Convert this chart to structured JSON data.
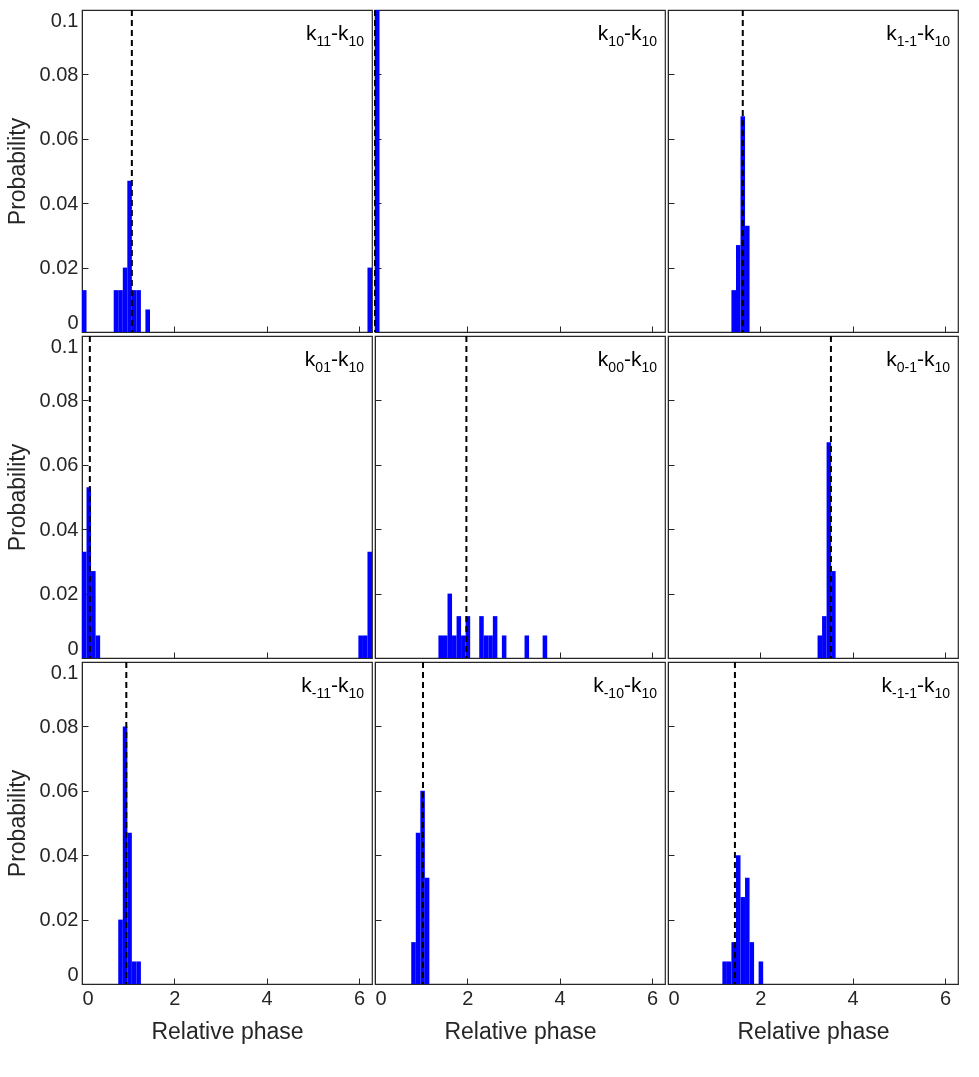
{
  "chart_data": [
    {
      "type": "histogram",
      "ylabel": "Probability",
      "annotations": [
        "k$_{11}$-k$_{10}$"
      ],
      "color": "#0000ff",
      "tick_labels": "y",
      "xlim": [
        0,
        6.283
      ],
      "xticks": [
        0,
        2,
        4,
        6
      ],
      "ylim": [
        0,
        0.1
      ],
      "yticks": [
        0,
        0.02,
        0.04,
        0.06,
        0.08,
        0.1
      ],
      "bins": [
        0,
        0.098,
        0.196,
        0.295,
        0.393,
        0.491,
        0.589,
        0.687,
        0.785,
        0.884,
        0.982,
        1.08,
        1.178,
        1.276,
        1.374,
        1.473,
        1.571,
        1.669,
        1.767,
        1.865,
        1.963,
        2.062,
        2.16,
        2.258,
        2.356,
        2.454,
        2.553,
        2.651,
        2.749,
        2.847,
        2.945,
        3.043,
        3.142,
        3.24,
        3.338,
        3.436,
        3.534,
        3.632,
        3.731,
        3.829,
        3.927,
        4.025,
        4.123,
        4.221,
        4.32,
        4.418,
        4.516,
        4.614,
        4.712,
        4.81,
        4.909,
        5.007,
        5.105,
        5.203,
        5.301,
        5.399,
        5.498,
        5.596,
        5.694,
        5.792,
        5.89,
        5.988,
        6.087,
        6.185,
        6.283
      ],
      "values": [
        0.013,
        0,
        0,
        0,
        0,
        0,
        0,
        0.013,
        0.013,
        0.02,
        0.047,
        0.013,
        0.013,
        0,
        0.007,
        0,
        0,
        0,
        0,
        0,
        0,
        0,
        0,
        0,
        0,
        0,
        0,
        0,
        0,
        0,
        0,
        0,
        0,
        0,
        0,
        0,
        0,
        0,
        0,
        0,
        0,
        0,
        0,
        0,
        0,
        0,
        0,
        0,
        0,
        0,
        0,
        0,
        0,
        0,
        0,
        0,
        0,
        0,
        0,
        0,
        0,
        0,
        0,
        0.02
      ],
      "ref_lines": [
        {
          "axis": "x",
          "value": 1.08,
          "line_style": "dashed",
          "color": "#000000"
        }
      ]
    },
    {
      "type": "histogram",
      "annotations": [
        "k$_{10}$-k$_{10}$"
      ],
      "color": "#0000ff",
      "tick_labels": false,
      "xlim": [
        0,
        6.283
      ],
      "xticks": [
        0,
        2,
        4,
        6
      ],
      "ylim": [
        0,
        0.1
      ],
      "yticks": [
        0,
        0.02,
        0.04,
        0.06,
        0.08,
        0.1
      ],
      "bins": [
        0,
        0.098,
        0.196,
        0.295,
        0.393,
        0.491,
        0.589,
        0.687,
        0.785,
        0.884,
        0.982,
        1.08,
        1.178,
        1.276,
        1.374,
        1.473,
        1.571,
        1.669,
        1.767,
        1.865,
        1.963,
        2.062,
        2.16,
        2.258,
        2.356,
        2.454,
        2.553,
        2.651,
        2.749,
        2.847,
        2.945,
        3.043,
        3.142,
        3.24,
        3.338,
        3.436,
        3.534,
        3.632,
        3.731,
        3.829,
        3.927,
        4.025,
        4.123,
        4.221,
        4.32,
        4.418,
        4.516,
        4.614,
        4.712,
        4.81,
        4.909,
        5.007,
        5.105,
        5.203,
        5.301,
        5.399,
        5.498,
        5.596,
        5.694,
        5.792,
        5.89,
        5.988,
        6.087,
        6.185,
        6.283
      ],
      "values": [
        0.1,
        0,
        0,
        0,
        0,
        0,
        0,
        0,
        0,
        0,
        0,
        0,
        0,
        0,
        0,
        0,
        0,
        0,
        0,
        0,
        0,
        0,
        0,
        0,
        0,
        0,
        0,
        0,
        0,
        0,
        0,
        0,
        0,
        0,
        0,
        0,
        0,
        0,
        0,
        0,
        0,
        0,
        0,
        0,
        0,
        0,
        0,
        0,
        0,
        0,
        0,
        0,
        0,
        0,
        0,
        0,
        0,
        0,
        0,
        0,
        0,
        0,
        0,
        0
      ],
      "ref_lines": [
        {
          "axis": "x",
          "value": 0,
          "line_style": "dashed",
          "color": "#000000"
        }
      ]
    },
    {
      "type": "histogram",
      "annotations": [
        "k$_{1-1}$-k$_{10}$"
      ],
      "color": "#0000ff",
      "tick_labels": false,
      "xlim": [
        0,
        6.283
      ],
      "xticks": [
        0,
        2,
        4,
        6
      ],
      "ylim": [
        0,
        0.1
      ],
      "yticks": [
        0,
        0.02,
        0.04,
        0.06,
        0.08,
        0.1
      ],
      "bins": [
        0,
        0.098,
        0.196,
        0.295,
        0.393,
        0.491,
        0.589,
        0.687,
        0.785,
        0.884,
        0.982,
        1.08,
        1.178,
        1.276,
        1.374,
        1.473,
        1.571,
        1.669,
        1.767,
        1.865,
        1.963,
        2.062,
        2.16,
        2.258,
        2.356,
        2.454,
        2.553,
        2.651,
        2.749,
        2.847,
        2.945,
        3.043,
        3.142,
        3.24,
        3.338,
        3.436,
        3.534,
        3.632,
        3.731,
        3.829,
        3.927,
        4.025,
        4.123,
        4.221,
        4.32,
        4.418,
        4.516,
        4.614,
        4.712,
        4.81,
        4.909,
        5.007,
        5.105,
        5.203,
        5.301,
        5.399,
        5.498,
        5.596,
        5.694,
        5.792,
        5.89,
        5.988,
        6.087,
        6.185,
        6.283
      ],
      "values": [
        0,
        0,
        0,
        0,
        0,
        0,
        0,
        0,
        0,
        0,
        0,
        0,
        0,
        0,
        0.013,
        0.027,
        0.067,
        0.033,
        0,
        0,
        0,
        0,
        0,
        0,
        0,
        0,
        0,
        0,
        0,
        0,
        0,
        0,
        0,
        0,
        0,
        0,
        0,
        0,
        0,
        0,
        0,
        0,
        0,
        0,
        0,
        0,
        0,
        0,
        0,
        0,
        0,
        0,
        0,
        0,
        0,
        0,
        0,
        0,
        0,
        0,
        0,
        0,
        0,
        0
      ],
      "ref_lines": [
        {
          "axis": "x",
          "value": 1.62,
          "line_style": "dashed",
          "color": "#000000"
        }
      ]
    },
    {
      "type": "histogram",
      "ylabel": "Probability",
      "annotations": [
        "k$_{01}$-k$_{10}$"
      ],
      "color": "#0000ff",
      "tick_labels": "y",
      "xlim": [
        0,
        6.283
      ],
      "xticks": [
        0,
        2,
        4,
        6
      ],
      "ylim": [
        0,
        0.1
      ],
      "yticks": [
        0,
        0.02,
        0.04,
        0.06,
        0.08,
        0.1
      ],
      "bins": [
        0,
        0.098,
        0.196,
        0.295,
        0.393,
        0.491,
        0.589,
        0.687,
        0.785,
        0.884,
        0.982,
        1.08,
        1.178,
        1.276,
        1.374,
        1.473,
        1.571,
        1.669,
        1.767,
        1.865,
        1.963,
        2.062,
        2.16,
        2.258,
        2.356,
        2.454,
        2.553,
        2.651,
        2.749,
        2.847,
        2.945,
        3.043,
        3.142,
        3.24,
        3.338,
        3.436,
        3.534,
        3.632,
        3.731,
        3.829,
        3.927,
        4.025,
        4.123,
        4.221,
        4.32,
        4.418,
        4.516,
        4.614,
        4.712,
        4.81,
        4.909,
        5.007,
        5.105,
        5.203,
        5.301,
        5.399,
        5.498,
        5.596,
        5.694,
        5.792,
        5.89,
        5.988,
        6.087,
        6.185,
        6.283
      ],
      "values": [
        0.033,
        0.053,
        0.027,
        0.007,
        0,
        0,
        0,
        0,
        0,
        0,
        0,
        0,
        0,
        0,
        0,
        0,
        0,
        0,
        0,
        0,
        0,
        0,
        0,
        0,
        0,
        0,
        0,
        0,
        0,
        0,
        0,
        0,
        0,
        0,
        0,
        0,
        0,
        0,
        0,
        0,
        0,
        0,
        0,
        0,
        0,
        0,
        0,
        0,
        0,
        0,
        0,
        0,
        0,
        0,
        0,
        0,
        0,
        0,
        0,
        0,
        0,
        0.007,
        0.007,
        0.033
      ],
      "ref_lines": [
        {
          "axis": "x",
          "value": 0.17,
          "line_style": "dashed",
          "color": "#000000"
        }
      ]
    },
    {
      "type": "histogram",
      "annotations": [
        "k$_{00}$-k$_{10}$"
      ],
      "color": "#0000ff",
      "tick_labels": false,
      "xlim": [
        0,
        6.283
      ],
      "xticks": [
        0,
        2,
        4,
        6
      ],
      "ylim": [
        0,
        0.1
      ],
      "yticks": [
        0,
        0.02,
        0.04,
        0.06,
        0.08,
        0.1
      ],
      "bins": [
        0,
        0.098,
        0.196,
        0.295,
        0.393,
        0.491,
        0.589,
        0.687,
        0.785,
        0.884,
        0.982,
        1.08,
        1.178,
        1.276,
        1.374,
        1.473,
        1.571,
        1.669,
        1.767,
        1.865,
        1.963,
        2.062,
        2.16,
        2.258,
        2.356,
        2.454,
        2.553,
        2.651,
        2.749,
        2.847,
        2.945,
        3.043,
        3.142,
        3.24,
        3.338,
        3.436,
        3.534,
        3.632,
        3.731,
        3.829,
        3.927,
        4.025,
        4.123,
        4.221,
        4.32,
        4.418,
        4.516,
        4.614,
        4.712,
        4.81,
        4.909,
        5.007,
        5.105,
        5.203,
        5.301,
        5.399,
        5.498,
        5.596,
        5.694,
        5.792,
        5.89,
        5.988,
        6.087,
        6.185,
        6.283
      ],
      "values": [
        0,
        0,
        0,
        0,
        0,
        0,
        0,
        0,
        0,
        0,
        0,
        0,
        0,
        0,
        0.007,
        0.007,
        0.02,
        0.007,
        0.013,
        0.007,
        0.013,
        0,
        0,
        0.013,
        0.007,
        0.007,
        0.013,
        0,
        0.007,
        0,
        0,
        0,
        0,
        0.007,
        0,
        0,
        0,
        0.007,
        0,
        0,
        0,
        0,
        0,
        0,
        0,
        0,
        0,
        0,
        0,
        0,
        0,
        0,
        0,
        0,
        0,
        0,
        0,
        0,
        0,
        0,
        0,
        0,
        0,
        0
      ],
      "ref_lines": [
        {
          "axis": "x",
          "value": 1.98,
          "line_style": "dashed",
          "color": "#000000"
        }
      ]
    },
    {
      "type": "histogram",
      "annotations": [
        "k$_{0-1}$-k$_{10}$"
      ],
      "color": "#0000ff",
      "tick_labels": false,
      "xlim": [
        0,
        6.283
      ],
      "xticks": [
        0,
        2,
        4,
        6
      ],
      "ylim": [
        0,
        0.1
      ],
      "yticks": [
        0,
        0.02,
        0.04,
        0.06,
        0.08,
        0.1
      ],
      "bins": [
        0,
        0.098,
        0.196,
        0.295,
        0.393,
        0.491,
        0.589,
        0.687,
        0.785,
        0.884,
        0.982,
        1.08,
        1.178,
        1.276,
        1.374,
        1.473,
        1.571,
        1.669,
        1.767,
        1.865,
        1.963,
        2.062,
        2.16,
        2.258,
        2.356,
        2.454,
        2.553,
        2.651,
        2.749,
        2.847,
        2.945,
        3.043,
        3.142,
        3.24,
        3.338,
        3.436,
        3.534,
        3.632,
        3.731,
        3.829,
        3.927,
        4.025,
        4.123,
        4.221,
        4.32,
        4.418,
        4.516,
        4.614,
        4.712,
        4.81,
        4.909,
        5.007,
        5.105,
        5.203,
        5.301,
        5.399,
        5.498,
        5.596,
        5.694,
        5.792,
        5.89,
        5.988,
        6.087,
        6.185,
        6.283
      ],
      "values": [
        0,
        0,
        0,
        0,
        0,
        0,
        0,
        0,
        0,
        0,
        0,
        0,
        0,
        0,
        0,
        0,
        0,
        0,
        0,
        0,
        0,
        0,
        0,
        0,
        0,
        0,
        0,
        0,
        0,
        0,
        0,
        0,
        0,
        0.007,
        0.013,
        0.067,
        0.027,
        0,
        0,
        0,
        0,
        0,
        0,
        0,
        0,
        0,
        0,
        0,
        0,
        0,
        0,
        0,
        0,
        0,
        0,
        0,
        0,
        0,
        0,
        0,
        0,
        0,
        0,
        0
      ],
      "ref_lines": [
        {
          "axis": "x",
          "value": 3.53,
          "line_style": "dashed",
          "color": "#000000"
        }
      ]
    },
    {
      "type": "histogram",
      "xlabel": "Relative phase",
      "ylabel": "Probability",
      "annotations": [
        "k$_{-11}$-k$_{10}$"
      ],
      "color": "#0000ff",
      "xlim": [
        0,
        6.283
      ],
      "xticks": [
        0,
        2,
        4,
        6
      ],
      "ylim": [
        0,
        0.1
      ],
      "yticks": [
        0,
        0.02,
        0.04,
        0.06,
        0.08,
        0.1
      ],
      "bins": [
        0,
        0.098,
        0.196,
        0.295,
        0.393,
        0.491,
        0.589,
        0.687,
        0.785,
        0.884,
        0.982,
        1.08,
        1.178,
        1.276,
        1.374,
        1.473,
        1.571,
        1.669,
        1.767,
        1.865,
        1.963,
        2.062,
        2.16,
        2.258,
        2.356,
        2.454,
        2.553,
        2.651,
        2.749,
        2.847,
        2.945,
        3.043,
        3.142,
        3.24,
        3.338,
        3.436,
        3.534,
        3.632,
        3.731,
        3.829,
        3.927,
        4.025,
        4.123,
        4.221,
        4.32,
        4.418,
        4.516,
        4.614,
        4.712,
        4.81,
        4.909,
        5.007,
        5.105,
        5.203,
        5.301,
        5.399,
        5.498,
        5.596,
        5.694,
        5.792,
        5.89,
        5.988,
        6.087,
        6.185,
        6.283
      ],
      "values": [
        0,
        0,
        0,
        0,
        0,
        0,
        0,
        0,
        0.02,
        0.08,
        0.047,
        0.007,
        0.007,
        0,
        0,
        0,
        0,
        0,
        0,
        0,
        0,
        0,
        0,
        0,
        0,
        0,
        0,
        0,
        0,
        0,
        0,
        0,
        0,
        0,
        0,
        0,
        0,
        0,
        0,
        0,
        0,
        0,
        0,
        0,
        0,
        0,
        0,
        0,
        0,
        0,
        0,
        0,
        0,
        0,
        0,
        0,
        0,
        0,
        0,
        0,
        0,
        0,
        0,
        0
      ],
      "ref_lines": [
        {
          "axis": "x",
          "value": 0.96,
          "line_style": "dashed",
          "color": "#000000"
        }
      ]
    },
    {
      "type": "histogram",
      "xlabel": "Relative phase",
      "annotations": [
        "k$_{-10}$-k$_{10}$"
      ],
      "color": "#0000ff",
      "tick_labels": "x",
      "xlim": [
        0,
        6.283
      ],
      "xticks": [
        0,
        2,
        4,
        6
      ],
      "ylim": [
        0,
        0.1
      ],
      "yticks": [
        0,
        0.02,
        0.04,
        0.06,
        0.08,
        0.1
      ],
      "bins": [
        0,
        0.098,
        0.196,
        0.295,
        0.393,
        0.491,
        0.589,
        0.687,
        0.785,
        0.884,
        0.982,
        1.08,
        1.178,
        1.276,
        1.374,
        1.473,
        1.571,
        1.669,
        1.767,
        1.865,
        1.963,
        2.062,
        2.16,
        2.258,
        2.356,
        2.454,
        2.553,
        2.651,
        2.749,
        2.847,
        2.945,
        3.043,
        3.142,
        3.24,
        3.338,
        3.436,
        3.534,
        3.632,
        3.731,
        3.829,
        3.927,
        4.025,
        4.123,
        4.221,
        4.32,
        4.418,
        4.516,
        4.614,
        4.712,
        4.81,
        4.909,
        5.007,
        5.105,
        5.203,
        5.301,
        5.399,
        5.498,
        5.596,
        5.694,
        5.792,
        5.89,
        5.988,
        6.087,
        6.185,
        6.283
      ],
      "values": [
        0,
        0,
        0,
        0,
        0,
        0,
        0,
        0,
        0.013,
        0.047,
        0.06,
        0.033,
        0,
        0,
        0,
        0,
        0,
        0,
        0,
        0,
        0,
        0,
        0,
        0,
        0,
        0,
        0,
        0,
        0,
        0,
        0,
        0,
        0,
        0,
        0,
        0,
        0,
        0,
        0,
        0,
        0,
        0,
        0,
        0,
        0,
        0,
        0,
        0,
        0,
        0,
        0,
        0,
        0,
        0,
        0,
        0,
        0,
        0,
        0,
        0,
        0,
        0,
        0,
        0
      ],
      "ref_lines": [
        {
          "axis": "x",
          "value": 1.04,
          "line_style": "dashed",
          "color": "#000000"
        }
      ]
    },
    {
      "type": "histogram",
      "xlabel": "Relative phase",
      "annotations": [
        "k$_{-1-1}$-k$_{10}$"
      ],
      "color": "#0000ff",
      "tick_labels": "x",
      "xlim": [
        0,
        6.283
      ],
      "xticks": [
        0,
        2,
        4,
        6
      ],
      "ylim": [
        0,
        0.1
      ],
      "yticks": [
        0,
        0.02,
        0.04,
        0.06,
        0.08,
        0.1
      ],
      "bins": [
        0,
        0.098,
        0.196,
        0.295,
        0.393,
        0.491,
        0.589,
        0.687,
        0.785,
        0.884,
        0.982,
        1.08,
        1.178,
        1.276,
        1.374,
        1.473,
        1.571,
        1.669,
        1.767,
        1.865,
        1.963,
        2.062,
        2.16,
        2.258,
        2.356,
        2.454,
        2.553,
        2.651,
        2.749,
        2.847,
        2.945,
        3.043,
        3.142,
        3.24,
        3.338,
        3.436,
        3.534,
        3.632,
        3.731,
        3.829,
        3.927,
        4.025,
        4.123,
        4.221,
        4.32,
        4.418,
        4.516,
        4.614,
        4.712,
        4.81,
        4.909,
        5.007,
        5.105,
        5.203,
        5.301,
        5.399,
        5.498,
        5.596,
        5.694,
        5.792,
        5.89,
        5.988,
        6.087,
        6.185,
        6.283
      ],
      "values": [
        0,
        0,
        0,
        0,
        0,
        0,
        0,
        0,
        0,
        0,
        0,
        0,
        0.007,
        0.007,
        0.013,
        0.04,
        0.027,
        0.033,
        0.013,
        0,
        0.007,
        0,
        0,
        0,
        0,
        0,
        0,
        0,
        0,
        0,
        0,
        0,
        0,
        0,
        0,
        0,
        0,
        0,
        0,
        0,
        0,
        0,
        0,
        0,
        0,
        0,
        0,
        0,
        0,
        0,
        0,
        0,
        0,
        0,
        0,
        0,
        0,
        0,
        0,
        0,
        0,
        0,
        0,
        0
      ],
      "ref_lines": [
        {
          "axis": "x",
          "value": 1.45,
          "line_style": "dashed",
          "color": "#000000"
        }
      ]
    }
  ]
}
